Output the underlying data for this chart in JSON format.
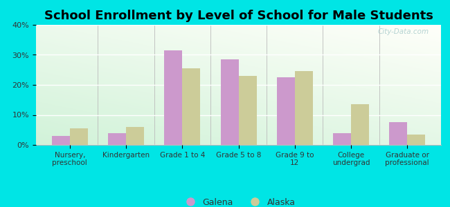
{
  "title": "School Enrollment by Level of School for Male Students",
  "categories": [
    "Nursery,\npreschool",
    "Kindergarten",
    "Grade 1 to 4",
    "Grade 5 to 8",
    "Grade 9 to\n12",
    "College\nundergrad",
    "Graduate or\nprofessional"
  ],
  "galena": [
    3.0,
    4.0,
    31.5,
    28.5,
    22.5,
    4.0,
    7.5
  ],
  "alaska": [
    5.5,
    6.0,
    25.5,
    23.0,
    24.5,
    13.5,
    3.5
  ],
  "galena_color": "#cc99cc",
  "alaska_color": "#cccc99",
  "background_color": "#00e5e5",
  "ylim": [
    0,
    40
  ],
  "yticks": [
    0,
    10,
    20,
    30,
    40
  ],
  "ytick_labels": [
    "0%",
    "10%",
    "20%",
    "30%",
    "40%"
  ],
  "title_fontsize": 13,
  "legend_labels": [
    "Galena",
    "Alaska"
  ],
  "watermark": "City-Data.com"
}
